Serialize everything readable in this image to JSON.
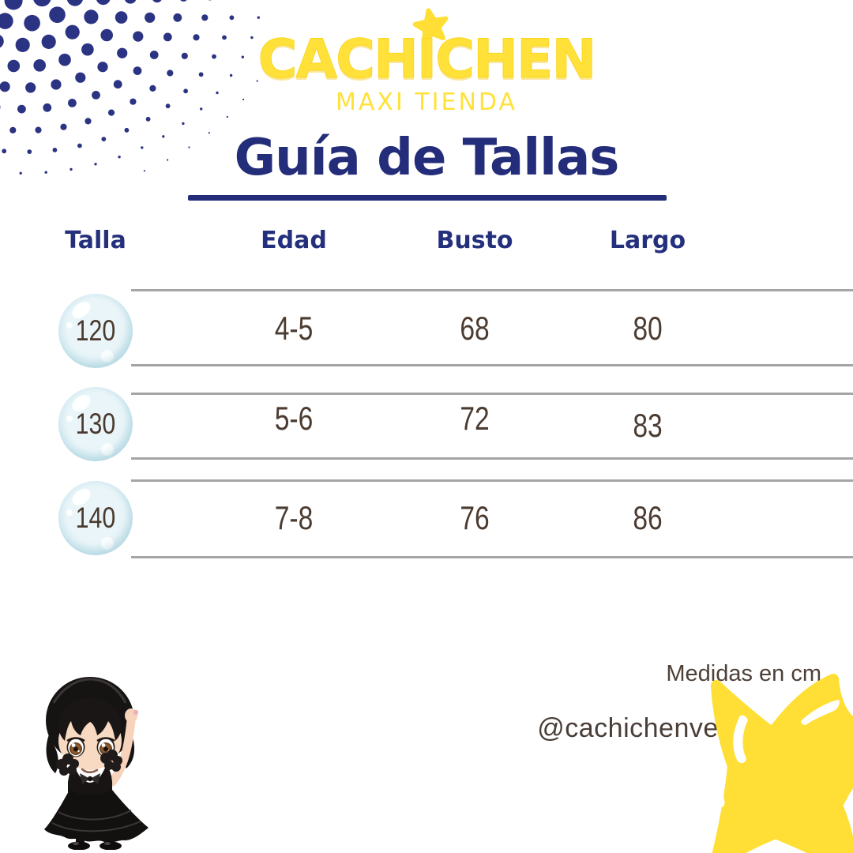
{
  "brand": {
    "name": "CACHICHEN",
    "subtitle": "MAXI TIENDA"
  },
  "page": {
    "title": "Guía de Tallas"
  },
  "table": {
    "headers": [
      "Talla",
      "Edad",
      "Busto",
      "Largo"
    ],
    "rows": [
      {
        "talla": "120",
        "edad": "4-5",
        "busto": "68",
        "largo": "80"
      },
      {
        "talla": "130",
        "edad": "5-6",
        "busto": "72",
        "largo": "83"
      },
      {
        "talla": "140",
        "edad": "7-8",
        "busto": "76",
        "largo": "86"
      }
    ]
  },
  "footer": {
    "note": "Medidas en cm",
    "handle": "@cachichenve"
  },
  "colors": {
    "navy": "#242d7a",
    "yellow": "#ffe139",
    "text_brown": "#4b3b30",
    "line_gray": "#a5a5a5",
    "bubble_blue": "#cfe8f0"
  },
  "icons": {
    "logo_star": "star-icon",
    "corner_star": "star-burst-icon",
    "pattern": "halftone-dots",
    "mascot": "wednesday-girl-mascot"
  }
}
